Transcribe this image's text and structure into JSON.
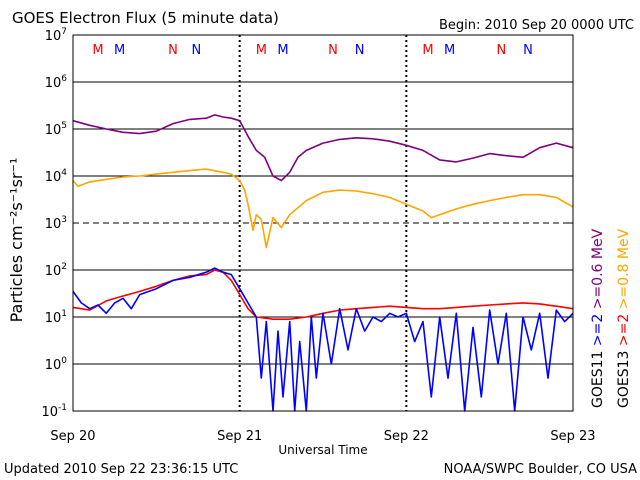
{
  "chart_data": {
    "type": "line",
    "title": "GOES Electron Flux (5 minute data)",
    "begin_label": "Begin: 2010 Sep 20 0000 UTC",
    "xlabel": "Universal Time",
    "ylabel": "Particles cm⁻²s⁻¹sr⁻¹",
    "footer_left": "Updated 2010 Sep 22 23:36:15 UTC",
    "footer_right": "NOAA/SWPC Boulder, CO USA",
    "x_ticks": [
      "Sep 20",
      "Sep 21",
      "Sep 22",
      "Sep 23"
    ],
    "xlim": [
      0,
      3
    ],
    "x_unit": "days since 2010 Sep 20 0000 UTC",
    "y_scale": "log",
    "ylim_exp": [
      -1,
      7
    ],
    "y_tick_base": "10",
    "y_tick_exps": [
      "-1",
      "0",
      "1",
      "2",
      "3",
      "4",
      "5",
      "6",
      "7"
    ],
    "dashed_gridline_exp": 3,
    "markers": [
      {
        "label": "M",
        "color": "#ff0000",
        "x": 0.15
      },
      {
        "label": "M",
        "color": "#0000ff",
        "x": 0.28
      },
      {
        "label": "N",
        "color": "#ff0000",
        "x": 0.6
      },
      {
        "label": "N",
        "color": "#0000ff",
        "x": 0.74
      },
      {
        "label": "M",
        "color": "#ff0000",
        "x": 1.13
      },
      {
        "label": "M",
        "color": "#0000ff",
        "x": 1.26
      },
      {
        "label": "N",
        "color": "#ff0000",
        "x": 1.56
      },
      {
        "label": "N",
        "color": "#0000ff",
        "x": 1.72
      },
      {
        "label": "M",
        "color": "#ff0000",
        "x": 2.13
      },
      {
        "label": "M",
        "color": "#0000ff",
        "x": 2.26
      },
      {
        "label": "N",
        "color": "#ff0000",
        "x": 2.57
      },
      {
        "label": "N",
        "color": "#0000ff",
        "x": 2.73
      }
    ],
    "legend": {
      "col1": [
        {
          "text": "GOES11",
          "color": "#000000"
        },
        {
          "text": ">=2",
          "color": "#0000ff"
        },
        {
          "text": ">=0.6 MeV",
          "color": "#800080"
        }
      ],
      "col2": [
        {
          "text": "GOES13",
          "color": "#000000"
        },
        {
          "text": ">=2",
          "color": "#ff0000"
        },
        {
          "text": ">=0.8 MeV",
          "color": "#ffa500"
        }
      ]
    },
    "series": [
      {
        "name": "GOES11 >=0.6 MeV",
        "color": "#800080",
        "x": [
          0,
          0.1,
          0.2,
          0.3,
          0.4,
          0.5,
          0.6,
          0.7,
          0.8,
          0.85,
          0.9,
          0.95,
          1.0,
          1.05,
          1.1,
          1.15,
          1.2,
          1.25,
          1.3,
          1.35,
          1.4,
          1.5,
          1.6,
          1.7,
          1.8,
          1.9,
          2.0,
          2.1,
          2.2,
          2.3,
          2.4,
          2.5,
          2.6,
          2.7,
          2.8,
          2.9,
          3.0
        ],
        "y": [
          150000,
          120000,
          100000,
          85000,
          80000,
          90000,
          130000,
          160000,
          170000,
          200000,
          180000,
          170000,
          150000,
          70000,
          35000,
          25000,
          10000,
          8000,
          12000,
          25000,
          35000,
          50000,
          60000,
          65000,
          62000,
          55000,
          45000,
          35000,
          22000,
          20000,
          24000,
          30000,
          27000,
          25000,
          40000,
          50000,
          40000
        ]
      },
      {
        "name": "GOES13 >=0.8 MeV",
        "color": "#ffa500",
        "x": [
          0,
          0.03,
          0.1,
          0.2,
          0.3,
          0.4,
          0.5,
          0.6,
          0.7,
          0.8,
          0.9,
          0.95,
          1.0,
          1.03,
          1.05,
          1.08,
          1.1,
          1.13,
          1.16,
          1.2,
          1.25,
          1.3,
          1.4,
          1.5,
          1.6,
          1.7,
          1.8,
          1.9,
          2.0,
          2.1,
          2.15,
          2.2,
          2.3,
          2.4,
          2.5,
          2.6,
          2.7,
          2.8,
          2.9,
          3.0
        ],
        "y": [
          8000,
          6000,
          7500,
          8500,
          9500,
          10000,
          11000,
          12000,
          13000,
          14000,
          12000,
          11000,
          8000,
          5000,
          2500,
          700,
          1500,
          1200,
          300,
          1300,
          800,
          1500,
          3000,
          4500,
          5000,
          4800,
          4200,
          3500,
          2500,
          1800,
          1300,
          1500,
          2000,
          2500,
          3000,
          3500,
          4000,
          4000,
          3500,
          2200
        ]
      },
      {
        "name": "GOES13 >=2 MeV",
        "color": "#ff0000",
        "x": [
          0,
          0.1,
          0.2,
          0.3,
          0.4,
          0.5,
          0.6,
          0.7,
          0.8,
          0.85,
          0.9,
          0.95,
          1.0,
          1.05,
          1.1,
          1.2,
          1.3,
          1.4,
          1.5,
          1.6,
          1.7,
          1.8,
          1.9,
          2.0,
          2.1,
          2.2,
          2.3,
          2.4,
          2.5,
          2.6,
          2.7,
          2.8,
          2.9,
          3.0
        ],
        "y": [
          16,
          14,
          22,
          28,
          35,
          45,
          60,
          75,
          80,
          100,
          90,
          60,
          30,
          15,
          10,
          9,
          9,
          10,
          12,
          14,
          15,
          16,
          17,
          16,
          15,
          15,
          16,
          17,
          18,
          19,
          20,
          19,
          17,
          15
        ]
      },
      {
        "name": "GOES11 >=2 MeV",
        "color": "#0000ff",
        "x": [
          0,
          0.05,
          0.1,
          0.15,
          0.2,
          0.25,
          0.3,
          0.35,
          0.4,
          0.5,
          0.6,
          0.7,
          0.8,
          0.85,
          0.9,
          0.95,
          1.0,
          1.05,
          1.1,
          1.13,
          1.16,
          1.2,
          1.23,
          1.26,
          1.3,
          1.33,
          1.36,
          1.4,
          1.43,
          1.46,
          1.5,
          1.55,
          1.6,
          1.65,
          1.7,
          1.75,
          1.8,
          1.85,
          1.9,
          1.95,
          2.0,
          2.05,
          2.1,
          2.15,
          2.2,
          2.25,
          2.3,
          2.35,
          2.4,
          2.45,
          2.5,
          2.55,
          2.6,
          2.65,
          2.7,
          2.75,
          2.8,
          2.85,
          2.9,
          2.95,
          3.0
        ],
        "y": [
          35,
          20,
          15,
          18,
          12,
          20,
          25,
          15,
          30,
          40,
          60,
          70,
          90,
          110,
          90,
          80,
          40,
          20,
          10,
          0.5,
          8,
          0.1,
          5,
          0.2,
          8,
          0.1,
          3,
          0.1,
          10,
          0.5,
          12,
          1,
          15,
          2,
          15,
          5,
          10,
          8,
          12,
          10,
          12,
          3,
          8,
          0.2,
          10,
          0.5,
          12,
          0.1,
          6,
          0.2,
          14,
          1,
          12,
          0.1,
          10,
          2,
          12,
          0.5,
          14,
          8,
          12
        ]
      }
    ]
  }
}
